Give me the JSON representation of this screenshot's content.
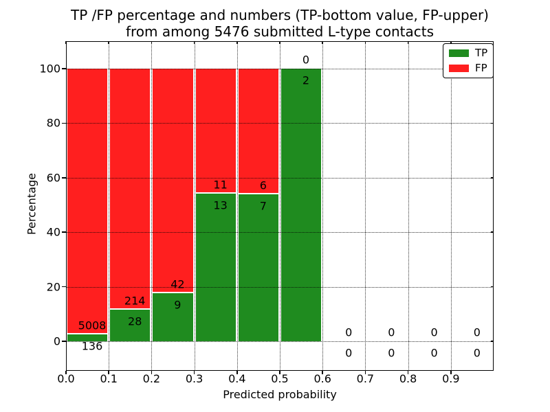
{
  "title": {
    "line1": "TP /FP percentage and numbers (TP-bottom value, FP-upper)",
    "line2": "from among 5476 submitted L-type contacts"
  },
  "chart_data": {
    "type": "bar",
    "stacked": true,
    "title": "TP /FP percentage and numbers (TP-bottom value, FP-upper) from among 5476 submitted L-type contacts",
    "total_contacts": 5476,
    "xlabel": "Predicted probability",
    "ylabel": "Percentage",
    "x_tick_labels": [
      "0.0",
      "0.1",
      "0.2",
      "0.3",
      "0.4",
      "0.5",
      "0.6",
      "0.7",
      "0.8",
      "0.9"
    ],
    "y_ticks": [
      0,
      20,
      40,
      60,
      80,
      100
    ],
    "ylim": [
      0,
      100
    ],
    "bin_width": 0.1,
    "grid": "dotted",
    "legend_position": "upper right",
    "series": [
      {
        "name": "TP",
        "color": "#1f8b1f",
        "counts": [
          136,
          28,
          9,
          13,
          7,
          2,
          0,
          0,
          0,
          0
        ]
      },
      {
        "name": "FP",
        "color": "#ff1f1f",
        "counts": [
          5008,
          214,
          42,
          11,
          6,
          0,
          0,
          0,
          0,
          0
        ]
      }
    ],
    "tp_percent_of_bin": [
      2.6,
      11.6,
      17.6,
      54.2,
      53.8,
      100.0,
      null,
      null,
      null,
      null
    ]
  }
}
